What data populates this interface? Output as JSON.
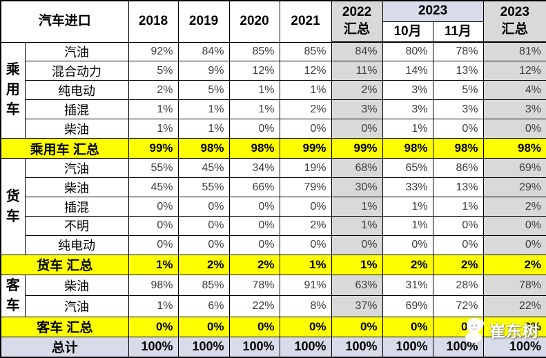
{
  "chart_data": {
    "type": "table",
    "title": "汽车进口",
    "header": {
      "title": "汽车进口",
      "years": [
        "2018",
        "2019",
        "2020",
        "2021"
      ],
      "total_2022": [
        "2022",
        "汇总"
      ],
      "group_2023": "2023",
      "months_2023": [
        "10月",
        "11月"
      ],
      "total_2023": [
        "2023",
        "汇总"
      ]
    },
    "columns": [
      "2018",
      "2019",
      "2020",
      "2021",
      "2022汇总",
      "2023-10月",
      "2023-11月",
      "2023汇总"
    ],
    "sections": [
      {
        "group": "乘用车",
        "rows": [
          {
            "label": "汽油",
            "values": [
              "92%",
              "84%",
              "85%",
              "85%",
              "84%",
              "80%",
              "78%",
              "81%"
            ]
          },
          {
            "label": "混合动力",
            "values": [
              "5%",
              "9%",
              "12%",
              "12%",
              "11%",
              "14%",
              "13%",
              "12%"
            ]
          },
          {
            "label": "纯电动",
            "values": [
              "2%",
              "5%",
              "1%",
              "1%",
              "2%",
              "3%",
              "5%",
              "4%"
            ]
          },
          {
            "label": "插混",
            "values": [
              "1%",
              "1%",
              "1%",
              "2%",
              "3%",
              "3%",
              "3%",
              "3%"
            ]
          },
          {
            "label": "柴油",
            "values": [
              "1%",
              "1%",
              "0%",
              "0%",
              "0%",
              "1%",
              "0%",
              "0%"
            ]
          }
        ],
        "total": {
          "label": "乘用车 汇总",
          "values": [
            "99%",
            "98%",
            "98%",
            "99%",
            "99%",
            "98%",
            "98%",
            "98%"
          ]
        }
      },
      {
        "group": "货车",
        "rows": [
          {
            "label": "汽油",
            "values": [
              "55%",
              "45%",
              "34%",
              "19%",
              "68%",
              "65%",
              "86%",
              "69%"
            ]
          },
          {
            "label": "柴油",
            "values": [
              "45%",
              "55%",
              "66%",
              "79%",
              "30%",
              "33%",
              "13%",
              "29%"
            ]
          },
          {
            "label": "插混",
            "values": [
              "0%",
              "0%",
              "0%",
              "0%",
              "1%",
              "1%",
              "1%",
              "2%"
            ]
          },
          {
            "label": "不明",
            "values": [
              "0%",
              "0%",
              "0%",
              "2%",
              "1%",
              "1%",
              "0%",
              "0%"
            ]
          },
          {
            "label": "纯电动",
            "values": [
              "0%",
              "0%",
              "0%",
              "0%",
              "0%",
              "0%",
              "0%",
              "0%"
            ]
          }
        ],
        "total": {
          "label": "货车 汇总",
          "values": [
            "1%",
            "2%",
            "2%",
            "1%",
            "1%",
            "2%",
            "2%",
            "2%"
          ]
        }
      },
      {
        "group": "客车",
        "rows": [
          {
            "label": "柴油",
            "values": [
              "98%",
              "85%",
              "78%",
              "91%",
              "63%",
              "31%",
              "28%",
              "78%"
            ]
          },
          {
            "label": "汽油",
            "values": [
              "1%",
              "6%",
              "22%",
              "8%",
              "37%",
              "69%",
              "72%",
              "22%"
            ]
          }
        ],
        "total": {
          "label": "客车 汇总",
          "values": [
            "0%",
            "0%",
            "0%",
            "0%",
            "0%",
            "0%",
            "0%",
            "0%"
          ]
        }
      }
    ],
    "grand_total": {
      "label": "总计",
      "values": [
        "100%",
        "100%",
        "100%",
        "100%",
        "100%",
        "100%",
        "100%",
        "100%"
      ]
    }
  },
  "colors": {
    "highlight_yellow": "#FFFF00",
    "summary_gray": "#D9D9D9",
    "total_lavender": "#D8DBEA"
  },
  "watermark": {
    "text": "崔东树"
  }
}
